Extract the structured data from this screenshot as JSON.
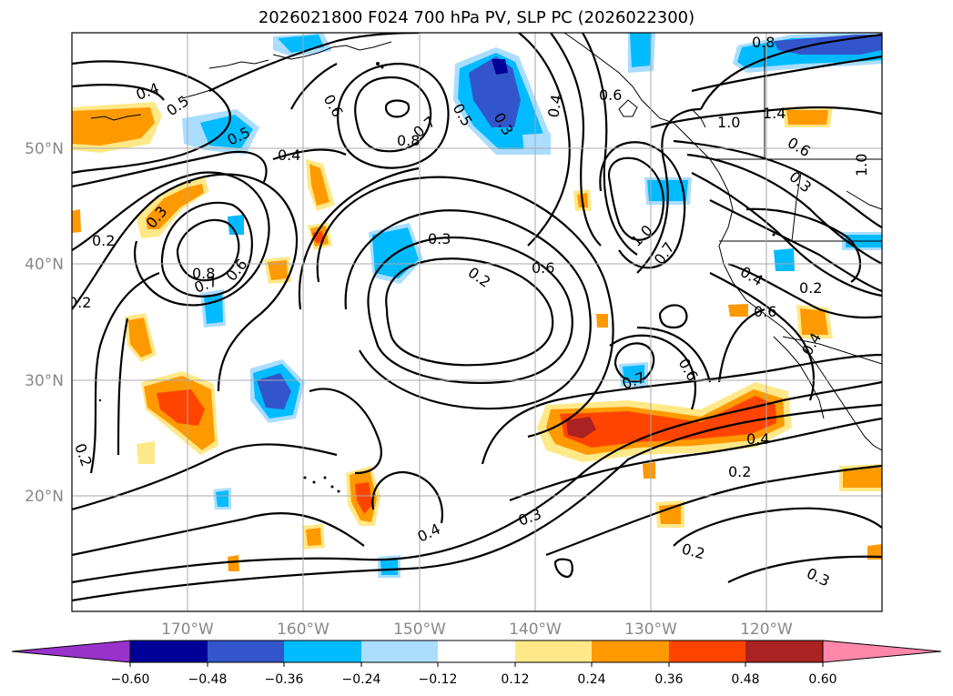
{
  "title": "2026021800 F024 700 hPa PV, SLP PC (2026022300)",
  "lat_labels": [
    "50°N",
    "40°N",
    "30°N",
    "20°N"
  ],
  "lon_labels": [
    "170°W",
    "160°W",
    "150°W",
    "140°W",
    "130°W",
    "120°W"
  ],
  "colorbar": {
    "colors": [
      "#9933cc",
      "#000099",
      "#3355cc",
      "#00bbff",
      "#aaddff",
      "#ffffff",
      "#ffe888",
      "#ff9900",
      "#ff4400",
      "#aa2222",
      "#ff88aa"
    ],
    "tick_labels": [
      "−0.60",
      "−0.48",
      "−0.36",
      "−0.24",
      "−0.12",
      "0.12",
      "0.24",
      "0.36",
      "0.48",
      "0.60"
    ]
  },
  "contour_labels": [
    "0.8",
    "0.4",
    "0.5",
    "0.6",
    "0.8",
    "0.7",
    "0.5",
    "0.3",
    "0.4",
    "0.6",
    "1.0",
    "1.4",
    "0.6",
    "1.0",
    "0.3",
    "0.5",
    "0.4",
    "0.3",
    "0.2",
    "0.8",
    "0.7",
    "0.6",
    "0.3",
    "0.2",
    "0.6",
    "1.0",
    "0.7",
    "0.4",
    "0.2",
    "0.6",
    "0.6",
    "0.7",
    "0.4",
    "0.2",
    "0.4",
    "0.3",
    "0.2",
    "0.3",
    "0.2",
    "0.4",
    "0.2"
  ]
}
